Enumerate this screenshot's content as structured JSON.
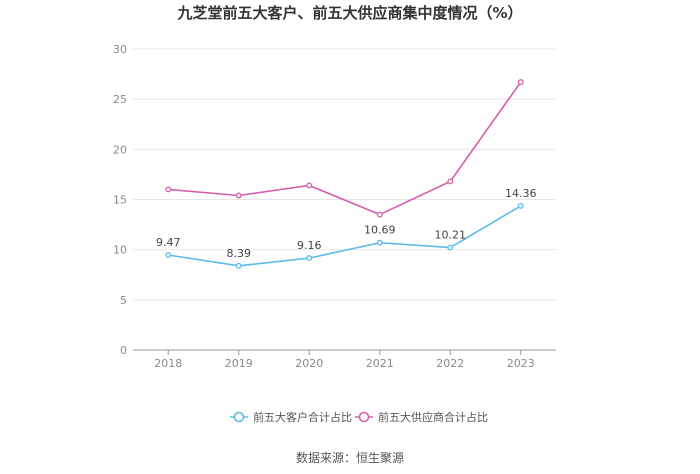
{
  "title": "九芝堂前五大客户、前五大供应商集中度情况（%）",
  "source": "数据来源：恒生聚源",
  "chart_data": {
    "type": "line",
    "title": "九芝堂前五大客户、前五大供应商集中度情况（%）",
    "x": [
      "2018",
      "2019",
      "2020",
      "2021",
      "2022",
      "2023"
    ],
    "ylim": [
      0,
      30
    ],
    "yticks": [
      0,
      5,
      10,
      15,
      20,
      25,
      30
    ],
    "grid": true,
    "legend_position": "bottom",
    "series": [
      {
        "name": "前五大客户合计占比",
        "color": "#5bbbe8",
        "values": [
          9.47,
          8.39,
          9.16,
          10.69,
          10.21,
          14.36
        ],
        "labels": [
          "9.47",
          "8.39",
          "9.16",
          "10.69",
          "10.21",
          "14.36"
        ]
      },
      {
        "name": "前五大供应商合计占比",
        "color": "#d45fa9",
        "values": [
          16.0,
          15.4,
          16.4,
          13.5,
          16.8,
          26.7
        ],
        "labels": []
      }
    ]
  }
}
